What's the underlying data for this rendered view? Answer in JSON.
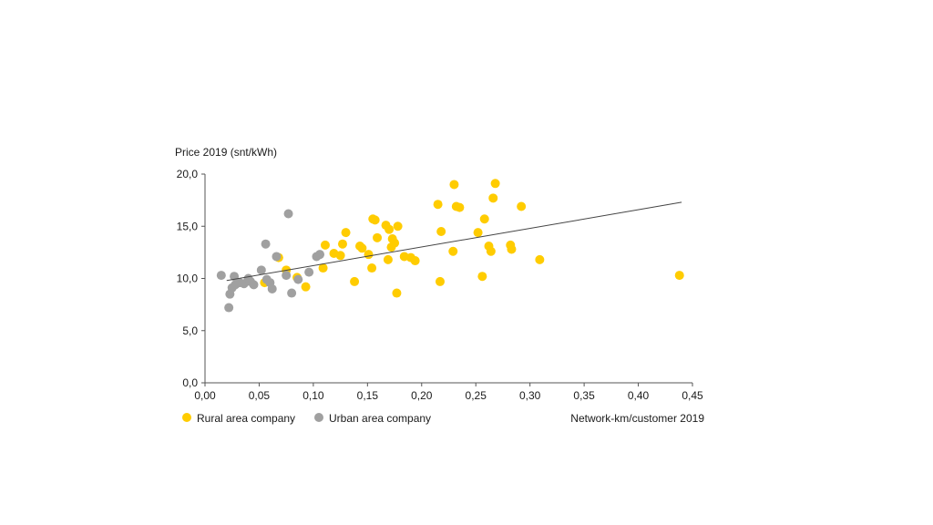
{
  "chart_data": {
    "type": "scatter",
    "ylabel": "Price 2019 (snt/kWh)",
    "xlabel": "Network-km/customer  2019",
    "xlim": [
      0,
      0.45
    ],
    "ylim": [
      0,
      20
    ],
    "x_ticks": [
      "0,00",
      "0,05",
      "0,10",
      "0,15",
      "0,20",
      "0,25",
      "0,30",
      "0,35",
      "0,40",
      "0,45"
    ],
    "y_ticks": [
      "0,0",
      "5,0",
      "10,0",
      "15,0",
      "20,0"
    ],
    "grid": false,
    "legend_position": "bottom-left",
    "trendline": {
      "x": [
        0.02,
        0.44
      ],
      "y": [
        9.8,
        17.3
      ]
    },
    "series": [
      {
        "name": "Rural area company",
        "color": "#FFCC00",
        "points": [
          [
            0.055,
            9.6
          ],
          [
            0.068,
            12.0
          ],
          [
            0.075,
            10.8
          ],
          [
            0.085,
            10.1
          ],
          [
            0.093,
            9.2
          ],
          [
            0.109,
            11.0
          ],
          [
            0.111,
            13.2
          ],
          [
            0.119,
            12.4
          ],
          [
            0.125,
            12.2
          ],
          [
            0.127,
            13.3
          ],
          [
            0.13,
            14.4
          ],
          [
            0.138,
            9.7
          ],
          [
            0.143,
            13.1
          ],
          [
            0.145,
            12.9
          ],
          [
            0.151,
            12.3
          ],
          [
            0.154,
            11.0
          ],
          [
            0.155,
            15.7
          ],
          [
            0.157,
            15.6
          ],
          [
            0.159,
            13.9
          ],
          [
            0.167,
            15.1
          ],
          [
            0.169,
            11.8
          ],
          [
            0.17,
            14.7
          ],
          [
            0.172,
            13.0
          ],
          [
            0.173,
            13.8
          ],
          [
            0.175,
            13.4
          ],
          [
            0.177,
            8.6
          ],
          [
            0.178,
            15.0
          ],
          [
            0.184,
            12.1
          ],
          [
            0.19,
            12.0
          ],
          [
            0.194,
            11.7
          ],
          [
            0.215,
            17.1
          ],
          [
            0.217,
            9.7
          ],
          [
            0.218,
            14.5
          ],
          [
            0.229,
            12.6
          ],
          [
            0.23,
            19.0
          ],
          [
            0.232,
            16.9
          ],
          [
            0.235,
            16.8
          ],
          [
            0.252,
            14.4
          ],
          [
            0.256,
            10.2
          ],
          [
            0.258,
            15.7
          ],
          [
            0.262,
            13.1
          ],
          [
            0.264,
            12.6
          ],
          [
            0.266,
            17.7
          ],
          [
            0.268,
            19.1
          ],
          [
            0.282,
            13.2
          ],
          [
            0.283,
            12.8
          ],
          [
            0.292,
            16.9
          ],
          [
            0.309,
            11.8
          ],
          [
            0.438,
            10.3
          ]
        ]
      },
      {
        "name": "Urban area company",
        "color": "#A0A0A0",
        "points": [
          [
            0.015,
            10.3
          ],
          [
            0.022,
            7.2
          ],
          [
            0.023,
            8.5
          ],
          [
            0.025,
            9.1
          ],
          [
            0.027,
            10.2
          ],
          [
            0.028,
            9.4
          ],
          [
            0.032,
            9.6
          ],
          [
            0.036,
            9.5
          ],
          [
            0.04,
            10.0
          ],
          [
            0.042,
            9.7
          ],
          [
            0.045,
            9.4
          ],
          [
            0.052,
            10.8
          ],
          [
            0.056,
            13.3
          ],
          [
            0.057,
            9.9
          ],
          [
            0.06,
            9.6
          ],
          [
            0.062,
            9.0
          ],
          [
            0.066,
            12.1
          ],
          [
            0.075,
            10.3
          ],
          [
            0.077,
            16.2
          ],
          [
            0.08,
            8.6
          ],
          [
            0.086,
            9.9
          ],
          [
            0.096,
            10.6
          ],
          [
            0.103,
            12.1
          ],
          [
            0.106,
            12.3
          ]
        ]
      }
    ]
  }
}
